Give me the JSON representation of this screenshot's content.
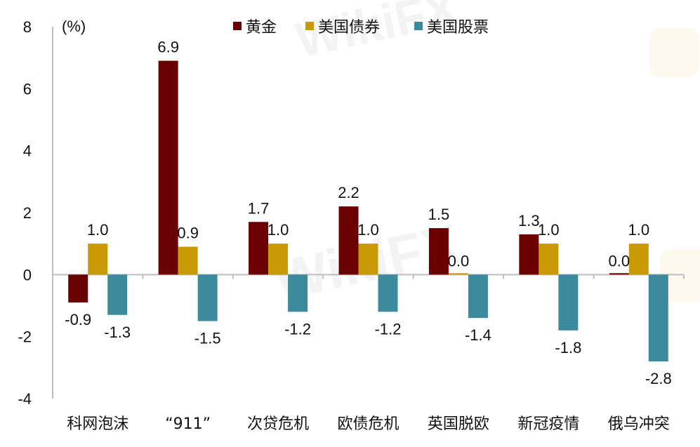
{
  "chart_data": {
    "type": "bar",
    "title": "",
    "unit_label": "(%)",
    "xlabel": "",
    "ylabel": "(%)",
    "ylim": [
      -4,
      8
    ],
    "yticks": [
      8,
      6,
      4,
      2,
      0,
      -2,
      -4
    ],
    "grid": false,
    "legend_position": "top",
    "categories": [
      "科网泡沫",
      "“911”",
      "次贷危机",
      "欧债危机",
      "英国脱欧",
      "新冠疫情",
      "俄乌冲突"
    ],
    "series": [
      {
        "name": "黄金",
        "color": "#6b0000",
        "values": [
          -0.9,
          6.9,
          1.7,
          2.2,
          1.5,
          1.3,
          0.0
        ]
      },
      {
        "name": "美国债券",
        "color": "#c99a06",
        "values": [
          1.0,
          0.9,
          1.0,
          1.0,
          0.0,
          1.0,
          1.0
        ]
      },
      {
        "name": "美国股票",
        "color": "#3b8b9c",
        "values": [
          -1.3,
          -1.5,
          -1.2,
          -1.2,
          -1.4,
          -1.8,
          -2.8
        ]
      }
    ],
    "data_labels": [
      [
        "-0.9",
        "6.9",
        "1.7",
        "2.2",
        "1.5",
        "1.3",
        "0.0"
      ],
      [
        "1.0",
        "0.9",
        "1.0",
        "1.0",
        "0.0",
        "1.0",
        "1.0"
      ],
      [
        "-1.3",
        "-1.5",
        "-1.2",
        "-1.2",
        "-1.4",
        "-1.8",
        "-2.8"
      ]
    ]
  },
  "colors": {
    "axis": "#bfbfbf",
    "text": "#111111"
  }
}
